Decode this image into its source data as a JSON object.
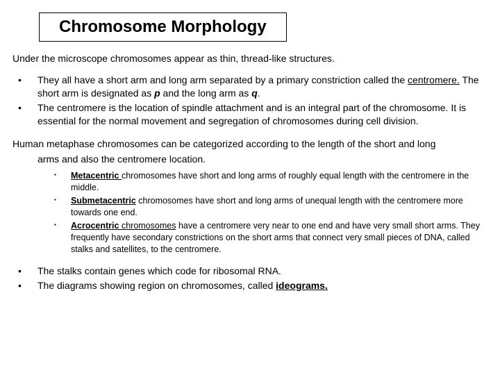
{
  "title": "Chromosome Morphology",
  "intro": "Under the microscope chromosomes appear as thin, thread-like structures.",
  "bullets1": {
    "b1a": "They all have a short arm and long arm separated by a primary constriction called the ",
    "b1b": "centromere.",
    "b1c": " The short arm is designated as ",
    "b1d": "p",
    "b1e": " and the long arm as ",
    "b1f": "q",
    "b1g": ".",
    "b2a": "The centromere is the location of spindle attachment and is an integral part of the chromosome. It is essential for the normal movement and segregation of chromosomes during cell division."
  },
  "para2": {
    "line1": "Human metaphase chromosomes can be categorized according to the length of the short and long",
    "line2": "arms and also the centromere location."
  },
  "bullets2": {
    "m1a": "Metacentric ",
    "m1b": "chromosomes have short and long arms of roughly equal length with the centromere in the middle.",
    "m2a": "Submetacentric",
    "m2b": " chromosomes have short and long arms of unequal length with the centromere more towards one end.",
    "m3a": "Acrocentric",
    "m3b": " chromosomes",
    "m3c": " have a centromere very near to one end and have very small short arms. They frequently have secondary constrictions on the short arms that connect very small pieces of DNA, called stalks and satellites, to the centromere."
  },
  "bullets3": {
    "b1": "The stalks contain genes which code for ribosomal RNA.",
    "b2a": "The diagrams showing region on chromosomes, called ",
    "b2b": "ideograms."
  },
  "style": {
    "background": "#ffffff",
    "text_color": "#000000",
    "title_fontsize": 24,
    "body_fontsize": 14,
    "inner_fontsize": 12.5,
    "border_color": "#000000",
    "font_family": "Comic Sans MS"
  }
}
